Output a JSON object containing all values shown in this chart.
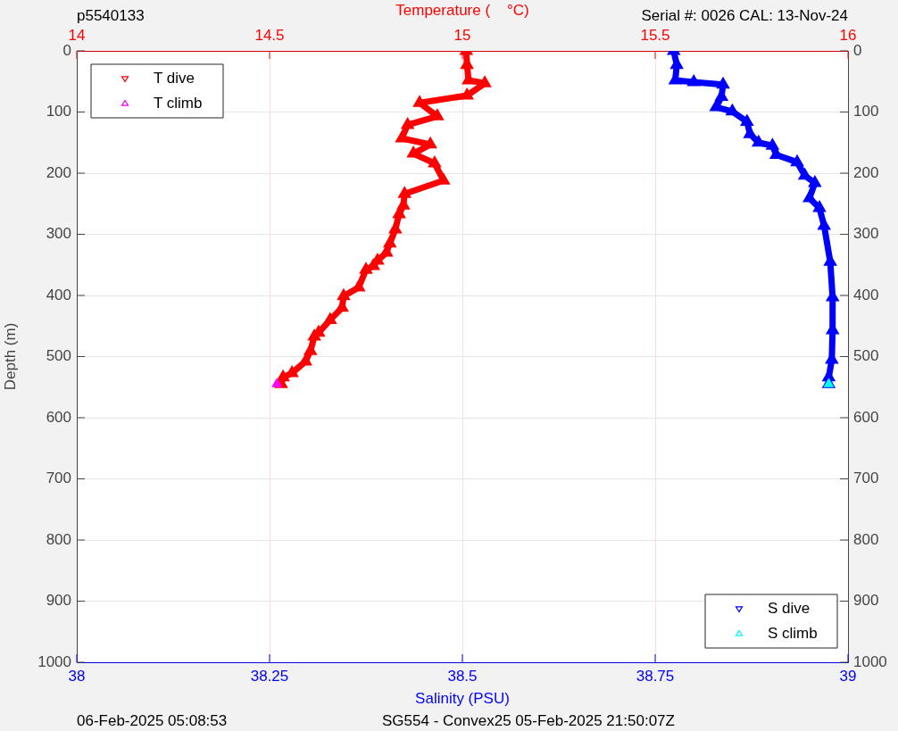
{
  "chart_data": {
    "type": "line",
    "title": "p5540133",
    "xlabel": "Salinity (PSU)",
    "x2label": "Temperature (    °C)",
    "ylabel": "Depth (m)",
    "annotations": [
      "Serial #: 0026 CAL: 13-Nov-24",
      "06-Feb-2025 05:08:53",
      "SG554 - Convex25 05-Feb-2025 21:50:07Z"
    ],
    "xlim": [
      38,
      39
    ],
    "xticks": [
      38,
      38.25,
      38.5,
      38.75,
      39
    ],
    "x2lim": [
      14,
      16
    ],
    "x2ticks": [
      14,
      14.5,
      15,
      15.5,
      16
    ],
    "ylim": [
      1000,
      0
    ],
    "yticks": [
      0,
      100,
      200,
      300,
      400,
      500,
      600,
      700,
      800,
      900,
      1000
    ],
    "y2lim": [
      1000,
      0
    ],
    "y2ticks": [
      0,
      100,
      200,
      300,
      400,
      500,
      600,
      700,
      800,
      900,
      1000
    ],
    "grid": true,
    "legend": "top left",
    "marker": "triangle",
    "series": [
      {
        "name": "T dive",
        "color": "#ff0000",
        "axis": "x2",
        "type": "line",
        "x": [
          15.01,
          15.012,
          15.016,
          15.058,
          15.012,
          14.889,
          14.935,
          14.858,
          14.843,
          14.917,
          14.873,
          14.928,
          14.951,
          14.85,
          14.847,
          14.836,
          14.826,
          14.812,
          14.803,
          14.78,
          14.769,
          14.75,
          14.731,
          14.692,
          14.688,
          14.657,
          14.627,
          14.616,
          14.606,
          14.593,
          14.558,
          14.535,
          14.53
        ],
        "values": [
          0,
          23,
          48,
          53,
          73,
          85,
          107,
          121,
          143,
          153,
          168,
          184,
          212,
          234,
          253,
          267,
          292,
          315,
          330,
          343,
          352,
          358,
          387,
          401,
          420,
          440,
          461,
          467,
          491,
          508,
          527,
          534,
          545
        ]
      },
      {
        "name": "T climb",
        "color": "#ff00ff",
        "axis": "x2",
        "type": "scatter",
        "x": [
          14.519
        ],
        "values": [
          545
        ]
      },
      {
        "name": "S dive",
        "color": "#0000ff",
        "type": "line",
        "x": [
          38.774,
          38.778,
          38.776,
          38.8,
          38.838,
          38.836,
          38.829,
          38.85,
          38.869,
          38.873,
          38.884,
          38.902,
          38.907,
          38.934,
          38.944,
          38.957,
          38.95,
          38.963,
          38.969,
          38.977,
          38.98,
          38.98,
          38.979,
          38.975,
          38.975
        ],
        "values": [
          0,
          23,
          48,
          51,
          55,
          75,
          92,
          99,
          116,
          136,
          150,
          155,
          170,
          182,
          204,
          216,
          241,
          257,
          286,
          345,
          403,
          457,
          505,
          534,
          545
        ]
      },
      {
        "name": "S climb",
        "color": "#00ffff",
        "type": "scatter",
        "x": [
          38.975
        ],
        "values": [
          545
        ]
      }
    ]
  }
}
